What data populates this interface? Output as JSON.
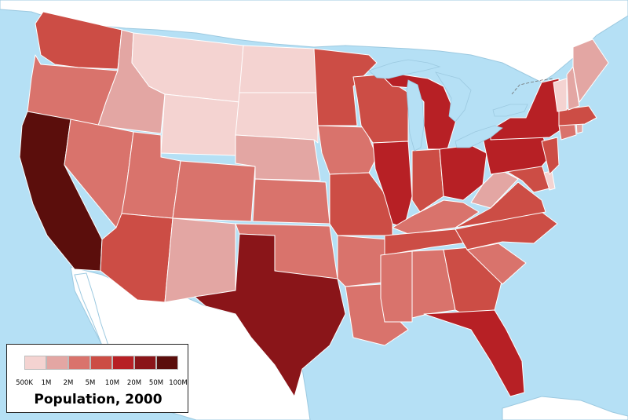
{
  "legend": {
    "title": "Population, 2000",
    "bins": [
      {
        "label": "500K",
        "color": "#f4d3d1"
      },
      {
        "label": "1M",
        "color": "#e3a6a3"
      },
      {
        "label": "2M",
        "color": "#d9736c"
      },
      {
        "label": "5M",
        "color": "#cc4d45"
      },
      {
        "label": "10M",
        "color": "#b72025"
      },
      {
        "label": "20M",
        "color": "#8a1519"
      },
      {
        "label": "50M",
        "color": "#5b0e0c"
      },
      {
        "label": "100M",
        "color": ""
      }
    ]
  },
  "states": [
    {
      "name": "washington",
      "bin": 3
    },
    {
      "name": "oregon",
      "bin": 2
    },
    {
      "name": "california",
      "bin": 6
    },
    {
      "name": "idaho",
      "bin": 1
    },
    {
      "name": "nevada",
      "bin": 2
    },
    {
      "name": "utah",
      "bin": 2
    },
    {
      "name": "arizona",
      "bin": 3
    },
    {
      "name": "montana",
      "bin": 0
    },
    {
      "name": "wyoming",
      "bin": 0
    },
    {
      "name": "colorado",
      "bin": 2
    },
    {
      "name": "new-mexico",
      "bin": 1
    },
    {
      "name": "north-dakota",
      "bin": 0
    },
    {
      "name": "south-dakota",
      "bin": 0
    },
    {
      "name": "nebraska",
      "bin": 1
    },
    {
      "name": "kansas",
      "bin": 2
    },
    {
      "name": "oklahoma",
      "bin": 2
    },
    {
      "name": "texas",
      "bin": 5
    },
    {
      "name": "minnesota",
      "bin": 3
    },
    {
      "name": "iowa",
      "bin": 2
    },
    {
      "name": "missouri",
      "bin": 3
    },
    {
      "name": "arkansas",
      "bin": 2
    },
    {
      "name": "louisiana",
      "bin": 2
    },
    {
      "name": "wisconsin",
      "bin": 3
    },
    {
      "name": "illinois",
      "bin": 4
    },
    {
      "name": "michigan",
      "bin": 4
    },
    {
      "name": "indiana",
      "bin": 3
    },
    {
      "name": "ohio",
      "bin": 4
    },
    {
      "name": "kentucky",
      "bin": 2
    },
    {
      "name": "tennessee",
      "bin": 3
    },
    {
      "name": "mississippi",
      "bin": 2
    },
    {
      "name": "alabama",
      "bin": 2
    },
    {
      "name": "georgia",
      "bin": 3
    },
    {
      "name": "florida",
      "bin": 4
    },
    {
      "name": "south-carolina",
      "bin": 2
    },
    {
      "name": "north-carolina",
      "bin": 3
    },
    {
      "name": "virginia",
      "bin": 3
    },
    {
      "name": "west-virginia",
      "bin": 1
    },
    {
      "name": "maryland",
      "bin": 3
    },
    {
      "name": "delaware",
      "bin": 0
    },
    {
      "name": "pennsylvania",
      "bin": 4
    },
    {
      "name": "new-jersey",
      "bin": 3
    },
    {
      "name": "new-york",
      "bin": 4
    },
    {
      "name": "connecticut",
      "bin": 2
    },
    {
      "name": "rhode-island",
      "bin": 1
    },
    {
      "name": "massachusetts",
      "bin": 3
    },
    {
      "name": "vermont",
      "bin": 0
    },
    {
      "name": "new-hampshire",
      "bin": 1
    },
    {
      "name": "maine",
      "bin": 1
    }
  ]
}
